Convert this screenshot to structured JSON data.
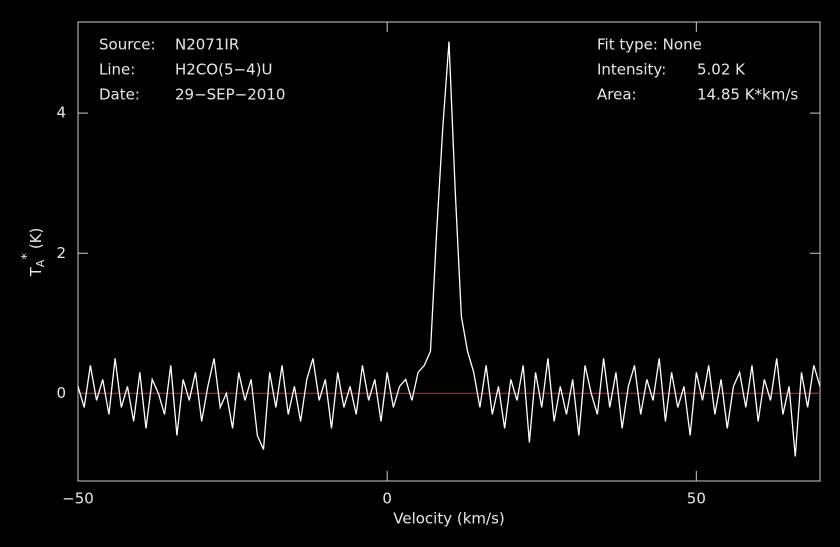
{
  "chart_data": {
    "type": "line",
    "xlabel": "Velocity (km/s)",
    "ylabel": {
      "main": "T",
      "sub": "A",
      "sup": "*",
      "unit": "(K)"
    },
    "annotations_left": [
      [
        "Source:",
        "N2071IR"
      ],
      [
        "Line:",
        "H2CO(5−4)U"
      ],
      [
        "Date:",
        "29−SEP−2010"
      ]
    ],
    "annotations_right": [
      [
        "Fit type: None"
      ],
      [
        "Intensity:",
        "5.02 K"
      ],
      [
        "Area:",
        "14.85 K*km/s"
      ]
    ],
    "xlim": [
      -50,
      70
    ],
    "ylim": [
      -1.25,
      5.3
    ],
    "xticks": [
      {
        "value": -50,
        "label": "−50"
      },
      0,
      50
    ],
    "yticks": [
      0,
      2,
      4
    ],
    "baseline": 0,
    "baseline_color": "#d01010",
    "series": [
      {
        "color": "#ffffff",
        "x": [
          -50,
          -49,
          -48,
          -47,
          -46,
          -45,
          -44,
          -43,
          -42,
          -41,
          -40,
          -39,
          -38,
          -37,
          -36,
          -35,
          -34,
          -33,
          -32,
          -31,
          -30,
          -29,
          -28,
          -27,
          -26,
          -25,
          -24,
          -23,
          -22,
          -21,
          -20,
          -19,
          -18,
          -17,
          -16,
          -15,
          -14,
          -13,
          -12,
          -11,
          -10,
          -9,
          -8,
          -7,
          -6,
          -5,
          -4,
          -3,
          -2,
          -1,
          0,
          1,
          2,
          3,
          4,
          5,
          6,
          7,
          8,
          9,
          10,
          11,
          12,
          13,
          14,
          15,
          16,
          17,
          18,
          19,
          20,
          21,
          22,
          23,
          24,
          25,
          26,
          27,
          28,
          29,
          30,
          31,
          32,
          33,
          34,
          35,
          36,
          37,
          38,
          39,
          40,
          41,
          42,
          43,
          44,
          45,
          46,
          47,
          48,
          49,
          50,
          51,
          52,
          53,
          54,
          55,
          56,
          57,
          58,
          59,
          60,
          61,
          62,
          63,
          64,
          65,
          66,
          67,
          68,
          69,
          70
        ],
        "values": [
          0.1,
          -0.2,
          0.4,
          -0.1,
          0.2,
          -0.3,
          0.5,
          -0.2,
          0.1,
          -0.4,
          0.3,
          -0.5,
          0.2,
          0.0,
          -0.3,
          0.4,
          -0.6,
          0.2,
          -0.1,
          0.3,
          -0.4,
          0.1,
          0.5,
          -0.2,
          0.0,
          -0.5,
          0.3,
          -0.1,
          0.2,
          -0.6,
          -0.8,
          0.3,
          -0.2,
          0.4,
          -0.3,
          0.1,
          -0.4,
          0.2,
          0.5,
          -0.1,
          0.2,
          -0.5,
          0.3,
          -0.2,
          0.1,
          -0.3,
          0.4,
          -0.1,
          0.2,
          -0.4,
          0.3,
          -0.2,
          0.1,
          0.2,
          -0.1,
          0.3,
          0.4,
          0.6,
          2.3,
          3.8,
          5.02,
          2.9,
          1.1,
          0.6,
          0.3,
          -0.2,
          0.4,
          -0.3,
          0.1,
          -0.5,
          0.2,
          -0.1,
          0.4,
          -0.7,
          0.3,
          -0.2,
          0.5,
          -0.4,
          0.1,
          -0.3,
          0.2,
          -0.6,
          0.4,
          0.0,
          -0.3,
          0.5,
          -0.2,
          0.3,
          -0.5,
          0.1,
          0.4,
          -0.3,
          0.2,
          -0.1,
          0.5,
          -0.4,
          0.3,
          -0.2,
          0.1,
          -0.6,
          0.3,
          -0.1,
          0.4,
          -0.3,
          0.2,
          -0.5,
          0.1,
          0.3,
          -0.2,
          0.4,
          -0.4,
          0.2,
          -0.1,
          0.5,
          -0.3,
          0.1,
          -0.9,
          0.3,
          -0.2,
          0.4,
          0.1
        ]
      }
    ]
  }
}
